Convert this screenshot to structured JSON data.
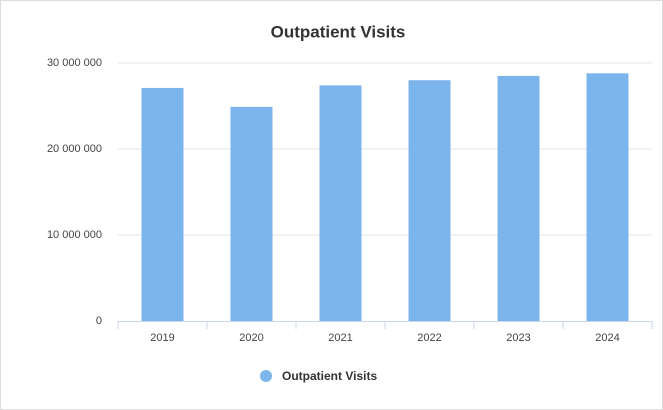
{
  "chart_data": {
    "type": "bar",
    "title": "Outpatient Visits",
    "categories": [
      "2019",
      "2020",
      "2021",
      "2022",
      "2023",
      "2024"
    ],
    "series": [
      {
        "name": "Outpatient Visits",
        "color": "#7cb5ec",
        "values": [
          27100000,
          24900000,
          27400000,
          28000000,
          28500000,
          28800000
        ]
      }
    ],
    "ylim": [
      0,
      30000000
    ],
    "yticks": [
      0,
      {
        "value": 10000000,
        "label": "10 000 000"
      },
      {
        "value": 20000000,
        "label": "20 000 000"
      },
      {
        "value": 30000000,
        "label": "30 000 000"
      }
    ],
    "grid": true,
    "legend": "bottom"
  }
}
